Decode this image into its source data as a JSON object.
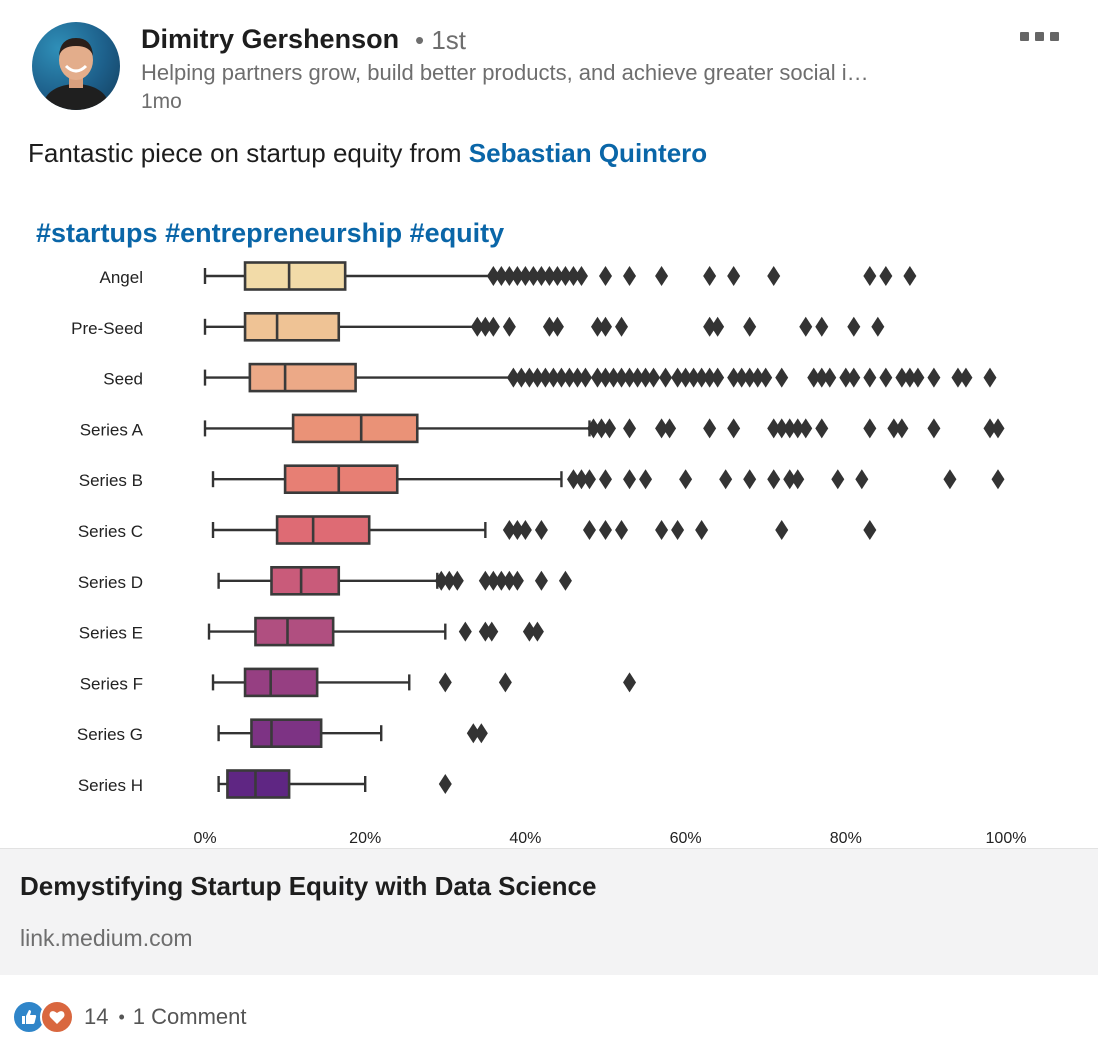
{
  "post": {
    "author": {
      "name": "Dimitry Gershenson",
      "degree": "• 1st",
      "headline": "Helping partners grow, build better products, and achieve greater social i…",
      "time": "1mo"
    },
    "more_icon": "more-horizontal-icon",
    "text_prefix": "Fantastic piece on startup equity from ",
    "mention": "Sebastian Quintero",
    "hashtags": [
      "#startups",
      "#entrepreneurship",
      "#equity"
    ]
  },
  "chart_data": {
    "type": "boxplot",
    "orientation": "horizontal",
    "categories": [
      "Angel",
      "Pre-Seed",
      "Seed",
      "Series A",
      "Series B",
      "Series C",
      "Series D",
      "Series E",
      "Series F",
      "Series G",
      "Series H"
    ],
    "x_ticks": [
      "0%",
      "20%",
      "40%",
      "60%",
      "80%",
      "100%"
    ],
    "xlim": [
      0,
      100
    ],
    "boxes": [
      {
        "label": "Angel",
        "min": 0,
        "q1": 5,
        "median": 10.5,
        "q3": 17.5,
        "max": 36,
        "color": "#f2dba8",
        "outliers": [
          36,
          37,
          38,
          39,
          40,
          41,
          42,
          43,
          44,
          45,
          46,
          47,
          50,
          53,
          57,
          63,
          66,
          71,
          83,
          85,
          88
        ]
      },
      {
        "label": "Pre-Seed",
        "min": 0,
        "q1": 5,
        "median": 9,
        "q3": 16.7,
        "max": 34,
        "color": "#efc395",
        "outliers": [
          34,
          35,
          36,
          38,
          43,
          44,
          49,
          50,
          52,
          63,
          64,
          68,
          75,
          77,
          81,
          84
        ]
      },
      {
        "label": "Seed",
        "min": 0,
        "q1": 5.6,
        "median": 10,
        "q3": 18.8,
        "max": 38.5,
        "color": "#eca987",
        "outliers": [
          38.5,
          39.5,
          40.5,
          41.5,
          42.5,
          43.5,
          44.5,
          45.5,
          46.5,
          47.5,
          49,
          50,
          51,
          52,
          53,
          54,
          55,
          56,
          57.5,
          59,
          60,
          61,
          62,
          63,
          64,
          66,
          67,
          68,
          69,
          70,
          72,
          76,
          77,
          78,
          80,
          81,
          83,
          85,
          87,
          88,
          89,
          91,
          94,
          95,
          98
        ]
      },
      {
        "label": "Series A",
        "min": 0,
        "q1": 11,
        "median": 19.5,
        "q3": 26.5,
        "max": 48,
        "color": "#ea9277",
        "outliers": [
          48.5,
          49.5,
          50.5,
          53,
          57,
          58,
          63,
          66,
          71,
          72,
          73,
          74,
          75,
          77,
          83,
          86,
          87,
          91,
          98,
          99
        ]
      },
      {
        "label": "Series B",
        "min": 1,
        "q1": 10,
        "median": 16.7,
        "q3": 24,
        "max": 44.5,
        "color": "#e77f74",
        "outliers": [
          46,
          47,
          48,
          50,
          53,
          55,
          60,
          65,
          68,
          71,
          73,
          74,
          79,
          82,
          93,
          99
        ]
      },
      {
        "label": "Series C",
        "min": 1,
        "q1": 9,
        "median": 13.5,
        "q3": 20.5,
        "max": 35,
        "color": "#de6b74",
        "outliers": [
          38,
          39,
          40,
          42,
          48,
          50,
          52,
          57,
          59,
          62,
          72,
          83
        ]
      },
      {
        "label": "Series D",
        "min": 1.7,
        "q1": 8.3,
        "median": 12,
        "q3": 16.7,
        "max": 29,
        "color": "#c95b7a",
        "outliers": [
          29.5,
          30.5,
          31.5,
          35,
          36,
          37,
          38,
          39,
          42,
          45
        ]
      },
      {
        "label": "Series E",
        "min": 0.5,
        "q1": 6.3,
        "median": 10.3,
        "q3": 16,
        "max": 30,
        "color": "#b04f80",
        "outliers": [
          32.5,
          35,
          35.8,
          40.5,
          41.5
        ]
      },
      {
        "label": "Series F",
        "min": 1,
        "q1": 5,
        "median": 8.2,
        "q3": 14,
        "max": 25.5,
        "color": "#963f82",
        "outliers": [
          30,
          37.5,
          53
        ]
      },
      {
        "label": "Series G",
        "min": 1.7,
        "q1": 5.8,
        "median": 8.3,
        "q3": 14.5,
        "max": 22,
        "color": "#7d3384",
        "outliers": [
          33.5,
          34.5
        ]
      },
      {
        "label": "Series H",
        "min": 1.7,
        "q1": 2.8,
        "median": 6.3,
        "q3": 10.5,
        "max": 20,
        "color": "#5f2683",
        "outliers": [
          30
        ]
      }
    ]
  },
  "link_card": {
    "title": "Demystifying Startup Equity with Data Science",
    "domain": "link.medium.com"
  },
  "social": {
    "reaction_icons": [
      "like-icon",
      "love-icon"
    ],
    "reaction_count": "14",
    "separator": "•",
    "comments": "1 Comment"
  }
}
